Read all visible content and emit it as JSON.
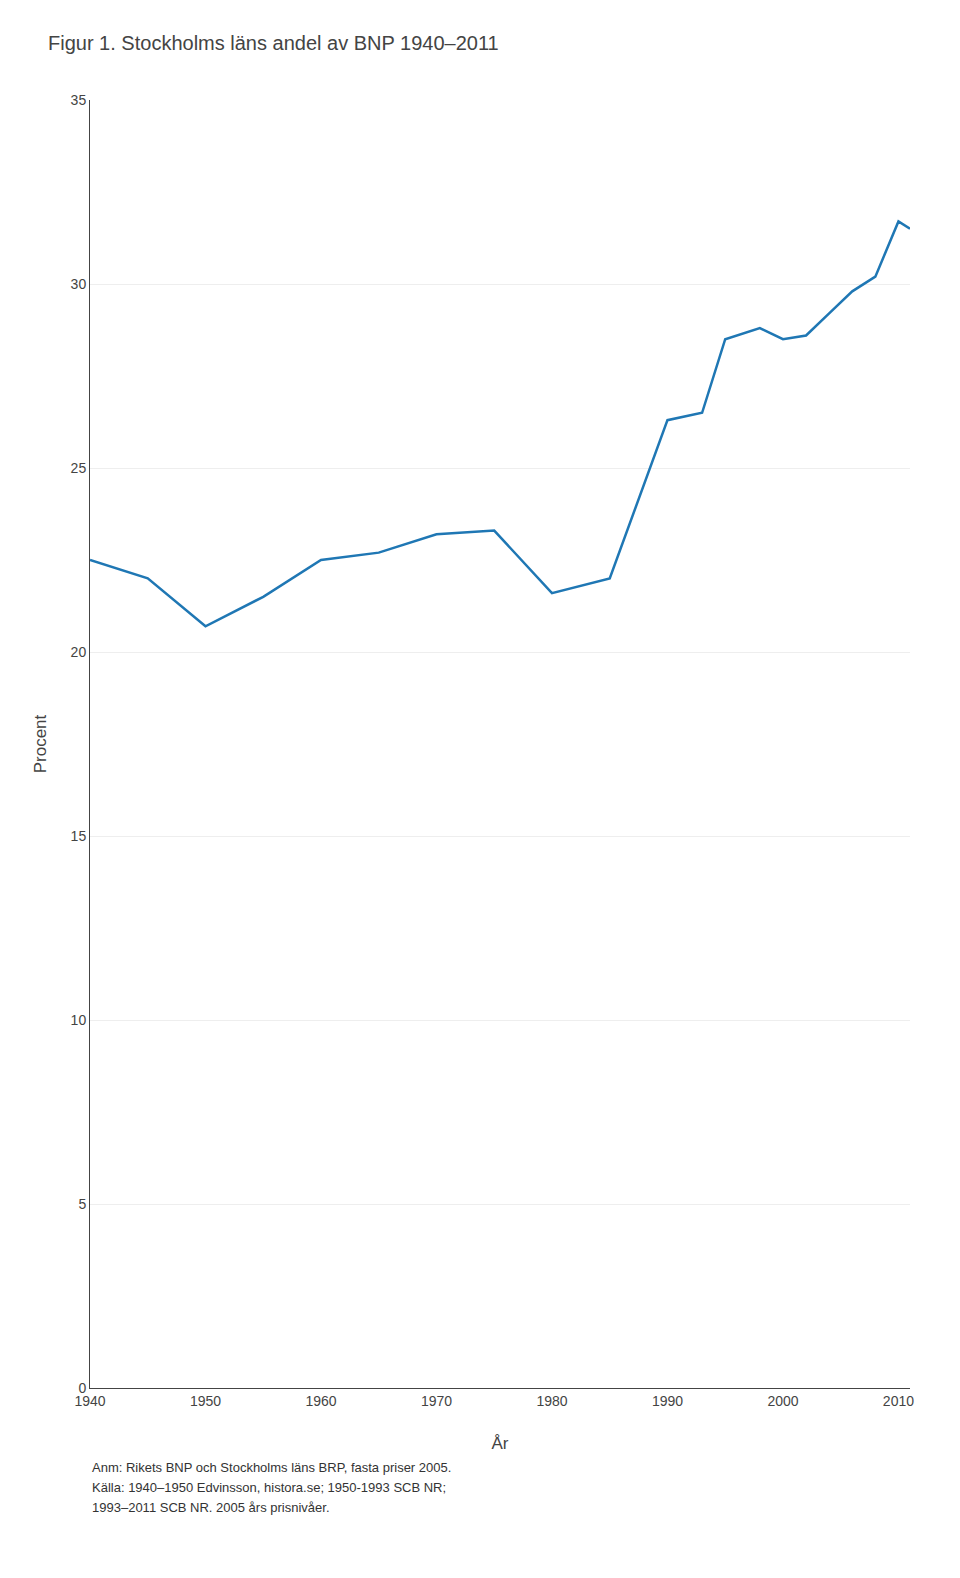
{
  "chart_data": {
    "type": "line",
    "title": "Figur 1. Stockholms läns andel av BNP 1940–2011",
    "xlabel": "År",
    "ylabel": "Procent",
    "x": [
      1940,
      1945,
      1950,
      1955,
      1960,
      1965,
      1970,
      1975,
      1980,
      1985,
      1990,
      1993,
      1995,
      1998,
      2000,
      2002,
      2004,
      2006,
      2008,
      2010,
      2011
    ],
    "values": [
      22.5,
      22.0,
      20.7,
      21.5,
      22.5,
      22.7,
      23.2,
      23.3,
      21.6,
      22.0,
      26.3,
      26.5,
      28.5,
      28.8,
      28.5,
      28.6,
      29.2,
      29.8,
      30.2,
      31.7,
      31.5
    ],
    "xlim": [
      1940,
      2011
    ],
    "ylim": [
      0,
      35
    ],
    "xticks": [
      1940,
      1950,
      1960,
      1970,
      1980,
      1990,
      2000,
      2010
    ],
    "yticks": [
      0,
      5,
      10,
      15,
      20,
      25,
      30,
      35
    ],
    "grid": "y",
    "annotations": [
      "Anm: Rikets BNP och Stockholms läns BRP, fasta priser 2005.",
      "Källa: 1940–1950 Edvinsson, histora.se; 1950-1993 SCB NR;",
      "1993–2011 SCB NR. 2005 års prisnivåer."
    ]
  }
}
